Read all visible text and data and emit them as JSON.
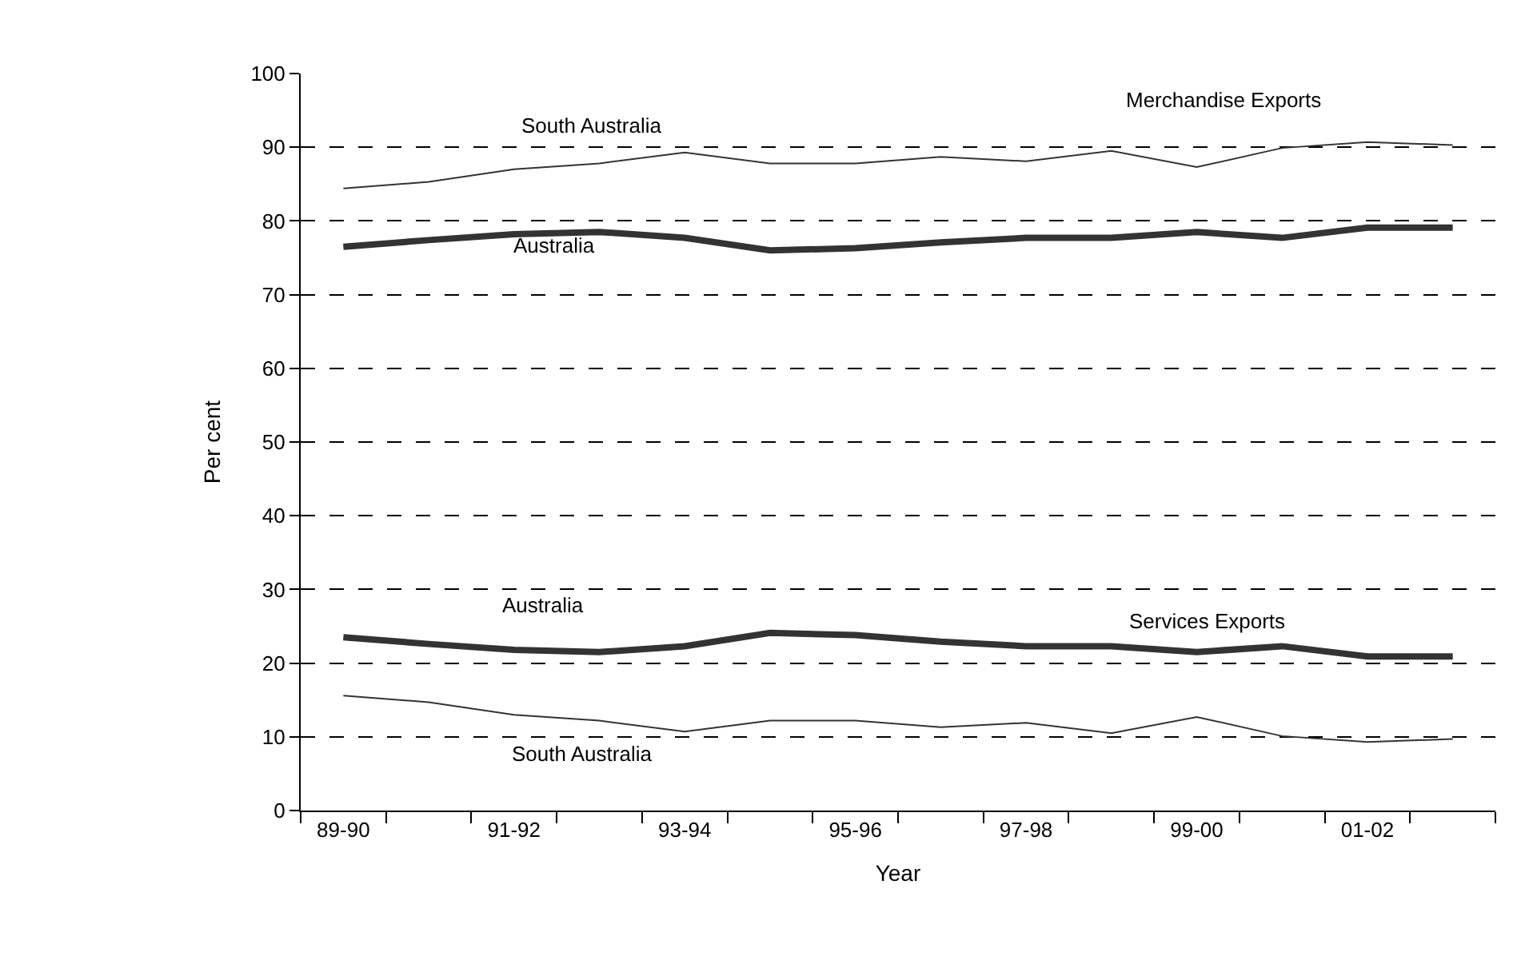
{
  "chart_data": {
    "type": "line",
    "xlabel": "Year",
    "ylabel": "Per cent",
    "categories": [
      "89-90",
      null,
      "91-92",
      null,
      "93-94",
      null,
      "95-96",
      null,
      "97-98",
      null,
      "99-00",
      null,
      "01-02",
      null
    ],
    "series": [
      {
        "color": "#333333",
        "values": [
          84.4,
          85.3,
          87.0,
          87.8,
          89.3,
          87.8,
          87.8,
          88.7,
          88.1,
          89.5,
          87.3,
          89.9,
          90.7,
          90.3
        ]
      },
      {
        "color": "#333333",
        "values": [
          76.5,
          77.4,
          78.2,
          78.5,
          77.7,
          76.0,
          76.3,
          77.1,
          77.7,
          77.7,
          78.5,
          77.7,
          79.1,
          79.1
        ]
      },
      {
        "color": "#333333",
        "values": [
          23.5,
          22.6,
          21.8,
          21.5,
          22.3,
          24.1,
          23.8,
          22.9,
          22.3,
          22.3,
          21.5,
          22.3,
          20.9,
          20.9
        ]
      },
      {
        "color": "#333333",
        "values": [
          15.6,
          14.7,
          13.0,
          12.2,
          10.7,
          12.2,
          12.2,
          11.3,
          11.9,
          10.5,
          12.7,
          10.1,
          9.3,
          9.7
        ]
      }
    ],
    "annotations": [
      "South Australia",
      "Australia",
      "Merchandise Exports",
      "Australia",
      "Services Exports",
      "South Australia"
    ],
    "ylim": [
      0,
      100
    ],
    "yticks": [
      0,
      10,
      20,
      30,
      40,
      50,
      60,
      70,
      80,
      90,
      100
    ],
    "grid": "y",
    "marker": "none",
    "line_style": "solid"
  }
}
